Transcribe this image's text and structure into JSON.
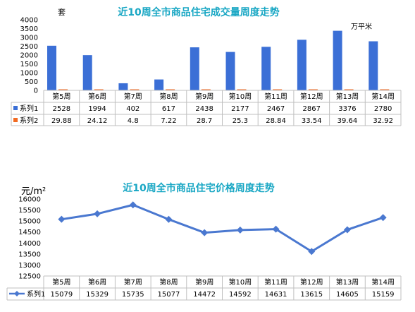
{
  "chart_data": [
    {
      "type": "bar",
      "title": "近10周全市商品住宅成交量周度走势",
      "unit_left": "套",
      "unit_right": "万平米",
      "categories": [
        "第5周",
        "第6周",
        "第7周",
        "第8周",
        "第9周",
        "第10周",
        "第11周",
        "第12周",
        "第13周",
        "第14周"
      ],
      "series": [
        {
          "name": "系列1",
          "color": "#3b6fd6",
          "values": [
            2528,
            1994,
            402,
            617,
            2438,
            2177,
            2467,
            2867,
            3376,
            2780
          ]
        },
        {
          "name": "系列2",
          "color": "#f26a21",
          "values": [
            29.88,
            24.12,
            4.8,
            7.22,
            28.7,
            25.3,
            28.84,
            33.54,
            39.64,
            32.92
          ]
        }
      ],
      "table_values": [
        [
          "2528",
          "1994",
          "402",
          "617",
          "2438",
          "2177",
          "2467",
          "2867",
          "3376",
          "2780"
        ],
        [
          "29.88",
          "24.12",
          "4.8",
          "7.22",
          "28.7",
          "25.3",
          "28.84",
          "33.54",
          "39.64",
          "32.92"
        ]
      ],
      "ylim": [
        0,
        4000
      ],
      "yticks": [
        "0",
        "500",
        "1000",
        "1500",
        "2000",
        "2500",
        "3000",
        "3500",
        "4000"
      ],
      "grid": false,
      "legend": "data-table"
    },
    {
      "type": "line",
      "title": "近10周全市商品住宅价格周度走势",
      "unit_left": "元/m²",
      "categories": [
        "第5周",
        "第6周",
        "第7周",
        "第8周",
        "第9周",
        "第10周",
        "第11周",
        "第12周",
        "第13周",
        "第14周"
      ],
      "series": [
        {
          "name": "系列1",
          "color": "#4a78d0",
          "values": [
            15079,
            15329,
            15735,
            15077,
            14472,
            14592,
            14631,
            13615,
            14605,
            15159
          ]
        }
      ],
      "table_values": [
        [
          "15079",
          "15329",
          "15735",
          "15077",
          "14472",
          "14592",
          "14631",
          "13615",
          "14605",
          "15159"
        ]
      ],
      "ylim": [
        12500,
        16000
      ],
      "yticks": [
        "12500",
        "13000",
        "13500",
        "14000",
        "14500",
        "15000",
        "15500",
        "16000"
      ],
      "grid": false,
      "legend": "data-table"
    }
  ]
}
